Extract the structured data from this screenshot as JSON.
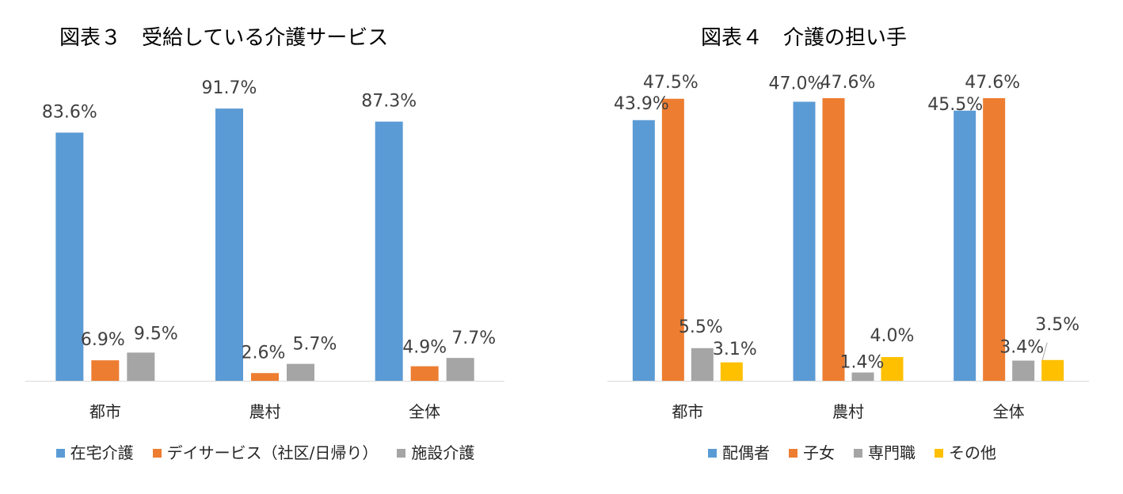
{
  "chart_data": [
    {
      "type": "bar",
      "title": "図表３　受給している介護サービス",
      "xlabel": "",
      "ylabel": "",
      "categories": [
        "都市",
        "農村",
        "全体"
      ],
      "ylim": [
        0,
        100
      ],
      "grid": false,
      "legend": "bottom",
      "series": [
        {
          "name": "在宅介護",
          "color": "#5B9BD5",
          "values": [
            83.6,
            91.7,
            87.3
          ],
          "data_labels": [
            "83.6%",
            "91.7%",
            "87.3%"
          ]
        },
        {
          "name": "デイサービス（社区/日帰り）",
          "color": "#ED7D31",
          "values": [
            6.9,
            2.6,
            4.9
          ],
          "data_labels": [
            "6.9%",
            "2.6%",
            "4.9%"
          ]
        },
        {
          "name": "施設介護",
          "color": "#A5A5A5",
          "values": [
            9.5,
            5.7,
            7.7
          ],
          "data_labels": [
            "9.5%",
            "5.7%",
            "7.7%"
          ]
        }
      ]
    },
    {
      "type": "bar",
      "title": "図表４　介護の担い手",
      "xlabel": "",
      "ylabel": "",
      "categories": [
        "都市",
        "農村",
        "全体"
      ],
      "ylim": [
        0,
        50
      ],
      "grid": false,
      "legend": "bottom",
      "series": [
        {
          "name": "配偶者",
          "color": "#5B9BD5",
          "values": [
            43.9,
            47.0,
            45.5
          ],
          "data_labels": [
            "43.9%",
            "47.0%",
            "45.5%"
          ]
        },
        {
          "name": "子女",
          "color": "#ED7D31",
          "values": [
            47.5,
            47.6,
            47.6
          ],
          "data_labels": [
            "47.5%",
            "47.6%",
            "47.6%"
          ]
        },
        {
          "name": "専門職",
          "color": "#A5A5A5",
          "values": [
            5.5,
            1.4,
            3.4
          ],
          "data_labels": [
            "5.5%",
            "1.4%",
            "3.4%"
          ]
        },
        {
          "name": "その他",
          "color": "#FFC000",
          "values": [
            3.1,
            4.0,
            3.5
          ],
          "data_labels": [
            "3.1%",
            "4.0%",
            "3.5%"
          ]
        }
      ]
    }
  ]
}
